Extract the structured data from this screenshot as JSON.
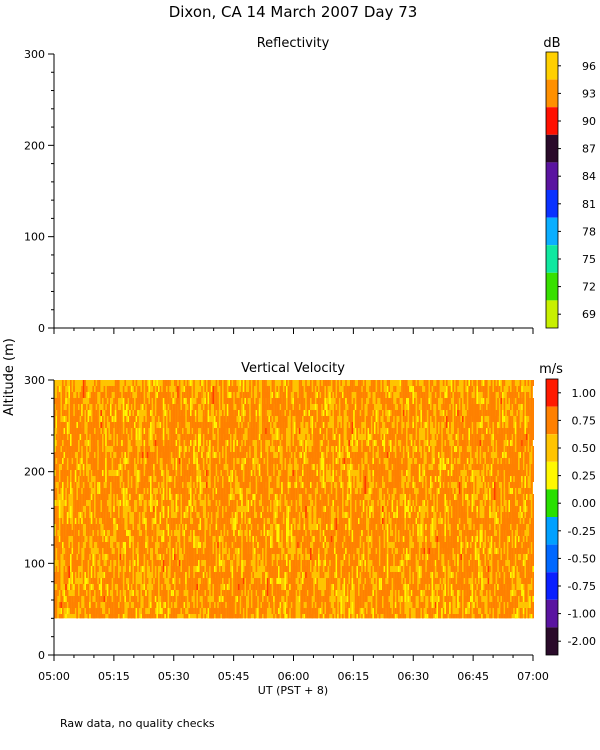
{
  "figure": {
    "title": "Dixon, CA 14 March 2007  Day  73",
    "ylabel": "Altitude (m)",
    "xlabel": "UT  (PST + 8)",
    "footnote": "Raw data, no quality checks"
  },
  "chart_data": [
    {
      "type": "heatmap",
      "title": "Reflectivity",
      "ylim": [
        0,
        300
      ],
      "y_ticks": [
        "0",
        "100",
        "200",
        "300"
      ],
      "x_ticks": [
        "05:00",
        "05:15",
        "05:30",
        "05:45",
        "06:00",
        "06:15",
        "06:30",
        "06:45",
        "07:00"
      ],
      "x_range": [
        "05:00",
        "07:00"
      ],
      "data": "no data plotted",
      "colorbar": {
        "unit": "dB",
        "labels": [
          "96",
          "93",
          "90",
          "87",
          "84",
          "81",
          "78",
          "75",
          "72",
          "69"
        ],
        "colors": [
          "#ffd000",
          "#ff9000",
          "#ff1000",
          "#2a0a2a",
          "#5a14a0",
          "#0a32ff",
          "#0aaeff",
          "#10e8a0",
          "#38e000",
          "#c8f000"
        ]
      }
    },
    {
      "type": "heatmap",
      "title": "Vertical Velocity",
      "ylim": [
        0,
        300
      ],
      "y_ticks": [
        "0",
        "100",
        "200",
        "300"
      ],
      "x_ticks": [
        "05:00",
        "05:15",
        "05:30",
        "05:45",
        "06:00",
        "06:15",
        "06:30",
        "06:45",
        "07:00"
      ],
      "x_range": [
        "05:00",
        "07:00"
      ],
      "data_altitude_range": [
        40,
        300
      ],
      "dominant_values": [
        "0.50",
        "0.75"
      ],
      "colorbar": {
        "unit": "m/s",
        "labels": [
          "1.00",
          "0.75",
          "0.50",
          "0.25",
          "0.00",
          "-0.25",
          "-0.50",
          "-0.75",
          "-1.00",
          "-2.00"
        ],
        "colors": [
          "#ff1a00",
          "#ff8000",
          "#ffc400",
          "#fff800",
          "#28e000",
          "#00a0ff",
          "#0068ff",
          "#0a20ff",
          "#5a14a0",
          "#2a0a2a"
        ]
      }
    }
  ]
}
